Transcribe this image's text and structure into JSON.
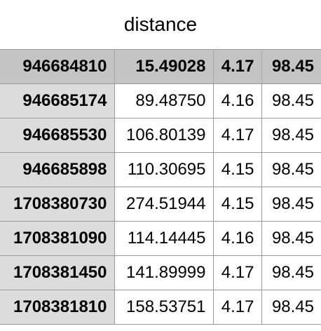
{
  "title": "distance",
  "header": [
    "946684810",
    "15.49028",
    "4.17",
    "98.45"
  ],
  "rows": [
    [
      "946685174",
      "89.48750",
      "4.16",
      "98.45"
    ],
    [
      "946685530",
      "106.80139",
      "4.17",
      "98.45"
    ],
    [
      "946685898",
      "110.30695",
      "4.15",
      "98.45"
    ],
    [
      "1708380730",
      "274.51944",
      "4.15",
      "98.45"
    ],
    [
      "1708381090",
      "114.14445",
      "4.16",
      "98.45"
    ],
    [
      "1708381450",
      "141.89999",
      "4.17",
      "98.45"
    ],
    [
      "1708381810",
      "158.53751",
      "4.17",
      "98.45"
    ]
  ]
}
